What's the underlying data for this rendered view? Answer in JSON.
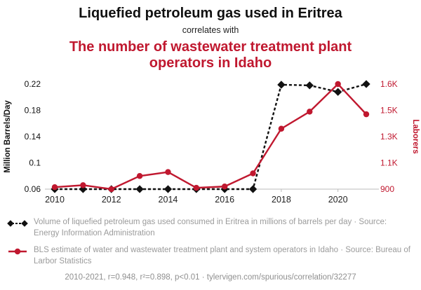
{
  "header": {
    "title": "Liquefied petroleum gas used in Eritrea",
    "connector": "correlates with",
    "subtitle": "The number of wastewater treatment plant operators in Idaho"
  },
  "colors": {
    "accent_red": "#c0182f",
    "series_black": "#111111",
    "muted_gray": "#9b9b9b",
    "axis_gray": "#bbbbbb"
  },
  "chart_data": {
    "type": "line",
    "x": [
      2010,
      2011,
      2012,
      2013,
      2014,
      2015,
      2016,
      2017,
      2018,
      2019,
      2020,
      2021
    ],
    "x_ticks": [
      "2010",
      "2012",
      "2014",
      "2016",
      "2018",
      "2020"
    ],
    "left_axis": {
      "label": "Million Barrels/Day",
      "ticks": [
        "0.06",
        "0.1",
        "0.14",
        "0.18",
        "0.22"
      ],
      "tick_values": [
        0.06,
        0.1,
        0.14,
        0.18,
        0.22
      ]
    },
    "right_axis": {
      "label": "Laborers",
      "ticks": [
        "900",
        "1.1K",
        "1.3K",
        "1.5K",
        "1.6K"
      ],
      "tick_values": [
        900,
        1100,
        1300,
        1500,
        1600
      ]
    },
    "series": [
      {
        "id": "lpg-eritrea",
        "name": "Volume of liquefied petroleum gas used consumed in Eritrea",
        "axis": "left",
        "color": "#111111",
        "dash": "4,3",
        "marker": "diamond",
        "values": [
          0.06,
          0.06,
          0.06,
          0.06,
          0.06,
          0.06,
          0.06,
          0.06,
          0.219,
          0.218,
          0.208,
          0.22
        ]
      },
      {
        "id": "wastewater-operators-idaho",
        "name": "BLS estimate of water and wastewater treatment plant and system operators in Idaho",
        "axis": "right",
        "color": "#c0182f",
        "dash": "",
        "marker": "circle",
        "values": [
          915,
          930,
          900,
          1000,
          1030,
          910,
          920,
          1020,
          1360,
          1490,
          1600,
          1470
        ]
      }
    ],
    "legend_position": "bottom",
    "grid": false
  },
  "legend": {
    "lpg": "Volume of liquefied petroleum gas used consumed in Eritrea in millions of barrels per day · Source: Energy Information Administration",
    "bls": "BLS estimate of water and wastewater treatment plant and system operators in Idaho · Source: Bureau of Larbor Statistics"
  },
  "footer": {
    "stats": "2010-2021, r=0.948, r²=0.898, p<0.01 · tylervigen.com/spurious/correlation/32277"
  }
}
